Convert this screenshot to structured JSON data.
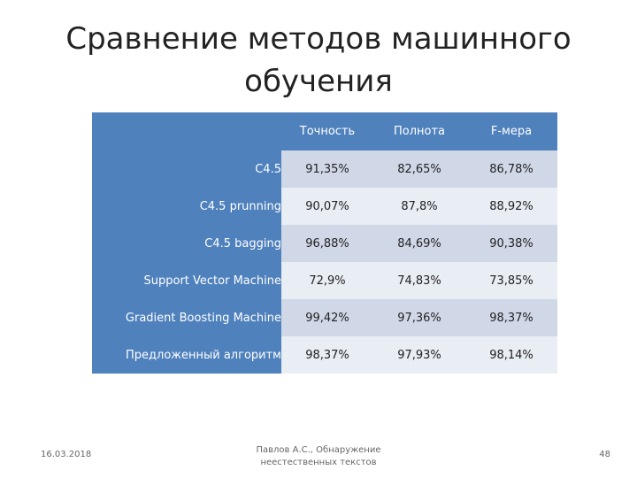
{
  "slide": {
    "title_line1": "Сравнение методов машинного",
    "title_line2": "обучения"
  },
  "table": {
    "columns": [
      "Точность",
      "Полнота",
      "F-мера"
    ],
    "rows": [
      {
        "name": "C4.5",
        "values": [
          "91,35%",
          "82,65%",
          "86,78%"
        ],
        "bold": [
          false,
          false,
          false
        ]
      },
      {
        "name": "C4.5 prunning",
        "values": [
          "90,07%",
          "87,8%",
          "88,92%"
        ],
        "bold": [
          false,
          false,
          false
        ]
      },
      {
        "name": "C4.5 bagging",
        "values": [
          "96,88%",
          "84,69%",
          "90,38%"
        ],
        "bold": [
          false,
          false,
          false
        ]
      },
      {
        "name": "Support Vector Machine",
        "values": [
          "72,9%",
          "74,83%",
          "73,85%"
        ],
        "bold": [
          false,
          false,
          false
        ]
      },
      {
        "name": "Gradient Boosting Machine",
        "values": [
          "99,42%",
          "97,36%",
          "98,37%"
        ],
        "bold": [
          true,
          false,
          true
        ]
      },
      {
        "name": "Предложенный алгоритм",
        "values": [
          "98,37%",
          "97,93%",
          "98,14%"
        ],
        "bold": [
          false,
          true,
          false
        ]
      }
    ]
  },
  "footer": {
    "date": "16.03.2018",
    "author_line1": "Павлов А.С., Обнаружение",
    "author_line2": "неестественных текстов",
    "page_number": "48"
  },
  "colors": {
    "header_blue": "#4f81bd",
    "row_light_blue": "#d0d8e8",
    "row_lighter_blue": "#e9edf4"
  }
}
